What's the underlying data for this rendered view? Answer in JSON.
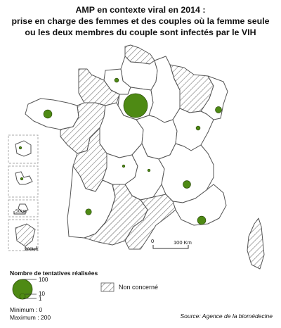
{
  "title": {
    "line1": "AMP en contexte viral en 2014 :",
    "line2": "prise en charge des femmes et des couples où la femme seule",
    "line3": "ou les deux membres du couple sont infectés par le VIH"
  },
  "legend": {
    "heading": "Nombre de tentatives réalisées",
    "size_values": [
      "100",
      "10",
      "1"
    ],
    "not_concerned": "Non concerné"
  },
  "scale": {
    "main_zero": "0",
    "main_label": "100 Km",
    "inset_small": "50km",
    "inset_large": "200km"
  },
  "stats": {
    "minimum": "Minimum : 0",
    "maximum": "Maximum : 200"
  },
  "source": "Source: Agence de la biomédecine",
  "colors": {
    "bubble_fill": "#4e8a14",
    "bubble_stroke": "#2a4a08",
    "region_fill": "#ffffff",
    "region_stroke": "#555555",
    "hatch": "#666666"
  },
  "bubbles": [
    {
      "region": "Île-de-France",
      "attempts": 200
    },
    {
      "region": "Haute-Normandie",
      "attempts": 6
    },
    {
      "region": "Bretagne",
      "attempts": 24
    },
    {
      "region": "Alsace",
      "attempts": 14
    },
    {
      "region": "Franche-Comté",
      "attempts": 6
    },
    {
      "region": "Rhône-Alpes",
      "attempts": 20
    },
    {
      "region": "Limousin",
      "attempts": 2
    },
    {
      "region": "Aquitaine",
      "attempts": 12
    },
    {
      "region": "Midi-Pyrénées",
      "attempts": 2
    },
    {
      "region": "Provence-Alpes-Côte d'Azur",
      "attempts": 24
    },
    {
      "region": "Guadeloupe",
      "attempts": 2
    },
    {
      "region": "Martinique",
      "attempts": 1
    }
  ]
}
